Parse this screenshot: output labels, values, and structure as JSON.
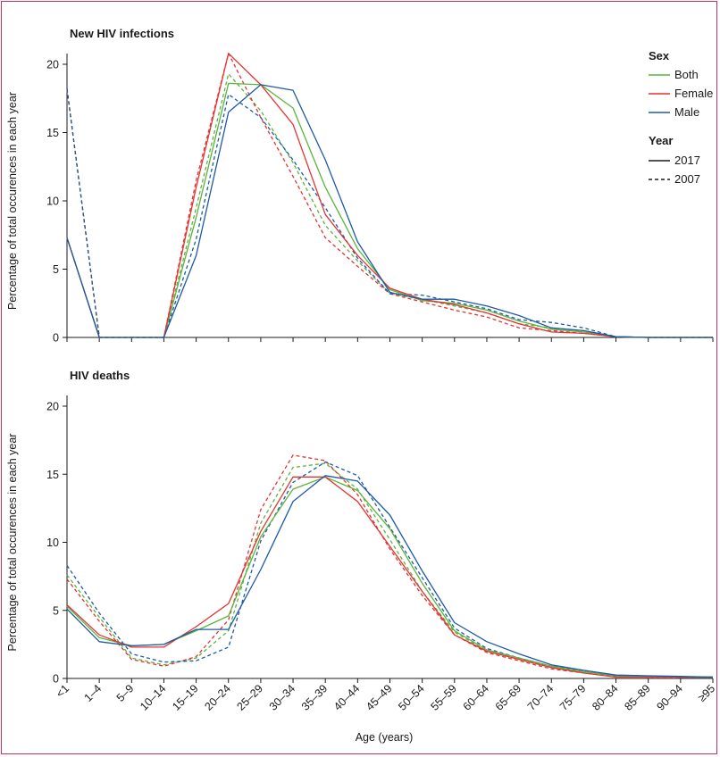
{
  "colors": {
    "both": "#5ab43c",
    "female": "#e53232",
    "male": "#1e5aa5",
    "frame": "#c8325a",
    "axis": "#1a1a1a"
  },
  "legend": {
    "sex_title": "Sex",
    "sex_items": [
      {
        "key": "both",
        "label": "Both"
      },
      {
        "key": "female",
        "label": "Female"
      },
      {
        "key": "male",
        "label": "Male"
      }
    ],
    "year_title": "Year",
    "year_items": [
      {
        "key": "2017",
        "label": "2017",
        "style": "solid"
      },
      {
        "key": "2007",
        "label": "2007",
        "style": "dashed"
      }
    ]
  },
  "x_axis": {
    "label": "Age (years)"
  },
  "chart_data": [
    {
      "type": "line",
      "title": "New HIV infections",
      "ylabel": "Percentage of total occurences in each year",
      "xlabel": "",
      "ylim": [
        0,
        20
      ],
      "yticks": [
        0,
        5,
        10,
        15,
        20
      ],
      "categories": [
        "<1",
        "1–4",
        "5–9",
        "10–14",
        "15–19",
        "20–24",
        "25–29",
        "30–34",
        "35–39",
        "40–44",
        "45–49",
        "50–54",
        "55–59",
        "60–64",
        "65–69",
        "70–74",
        "75–79",
        "80–84",
        "85–89",
        "90–94",
        "≥95"
      ],
      "series": [
        {
          "name": "Both 2017",
          "sex": "both",
          "year": "2017",
          "values": [
            7.3,
            0,
            0,
            0,
            8.8,
            18.6,
            18.5,
            16.8,
            11.0,
            6.5,
            3.5,
            2.7,
            2.5,
            2.0,
            1.2,
            0.6,
            0.4,
            0.05,
            0,
            0,
            0
          ]
        },
        {
          "name": "Female 2017",
          "sex": "female",
          "year": "2017",
          "values": [
            7.3,
            0,
            0,
            0,
            11.0,
            20.8,
            18.5,
            15.6,
            9.0,
            6.0,
            3.6,
            2.8,
            2.4,
            1.8,
            1.0,
            0.4,
            0.3,
            0.05,
            0,
            0,
            0
          ]
        },
        {
          "name": "Male 2017",
          "sex": "male",
          "year": "2017",
          "values": [
            7.3,
            0,
            0,
            0,
            6.0,
            16.5,
            18.5,
            18.1,
            13.0,
            7.0,
            3.3,
            2.8,
            2.8,
            2.3,
            1.6,
            0.7,
            0.5,
            0.05,
            0,
            0,
            0
          ]
        },
        {
          "name": "Both 2007",
          "sex": "both",
          "year": "2007",
          "values": [
            18.2,
            0,
            0,
            0,
            9.5,
            19.3,
            16.6,
            12.8,
            8.2,
            5.6,
            3.2,
            2.8,
            2.3,
            1.8,
            1.0,
            0.7,
            0.5,
            0.05,
            0,
            0,
            0
          ]
        },
        {
          "name": "Female 2007",
          "sex": "female",
          "year": "2007",
          "values": [
            18.2,
            0,
            0,
            0,
            11.5,
            20.8,
            16.1,
            11.8,
            7.3,
            5.2,
            3.2,
            2.6,
            2.0,
            1.5,
            0.7,
            0.5,
            0.3,
            0.05,
            0,
            0,
            0
          ]
        },
        {
          "name": "Male 2007",
          "sex": "male",
          "year": "2007",
          "values": [
            18.2,
            0,
            0,
            0,
            7.2,
            17.8,
            16.1,
            13.0,
            9.5,
            5.8,
            3.2,
            3.1,
            2.6,
            2.1,
            1.3,
            1.1,
            0.7,
            0.05,
            0,
            0,
            0
          ]
        }
      ]
    },
    {
      "type": "line",
      "title": "HIV deaths",
      "ylabel": "Percentage of total occurences in each year",
      "xlabel": "Age (years)",
      "ylim": [
        0,
        20
      ],
      "yticks": [
        0,
        5,
        10,
        15,
        20
      ],
      "categories": [
        "<1",
        "1–4",
        "5–9",
        "10–14",
        "15–19",
        "20–24",
        "25–29",
        "30–34",
        "35–39",
        "40–44",
        "45–49",
        "50–54",
        "55–59",
        "60–64",
        "65–69",
        "70–74",
        "75–79",
        "80–84",
        "85–89",
        "90–94",
        "≥95"
      ],
      "series": [
        {
          "name": "Both 2017",
          "sex": "both",
          "year": "2017",
          "values": [
            5.3,
            3.0,
            2.4,
            2.5,
            3.5,
            4.6,
            10.4,
            13.9,
            14.8,
            13.8,
            11.0,
            7.0,
            3.5,
            2.1,
            1.5,
            0.9,
            0.5,
            0.2,
            0.15,
            0.1,
            0.1
          ]
        },
        {
          "name": "Female 2017",
          "sex": "female",
          "year": "2017",
          "values": [
            5.4,
            3.2,
            2.3,
            2.3,
            3.8,
            5.5,
            10.8,
            14.8,
            14.8,
            13.0,
            9.7,
            6.4,
            3.2,
            2.0,
            1.4,
            0.8,
            0.4,
            0.1,
            0.1,
            0.1,
            0.1
          ]
        },
        {
          "name": "Male 2017",
          "sex": "male",
          "year": "2017",
          "values": [
            5.1,
            2.7,
            2.4,
            2.5,
            3.6,
            3.6,
            8.0,
            13.0,
            14.9,
            14.5,
            12.0,
            7.9,
            4.1,
            2.7,
            1.8,
            1.0,
            0.6,
            0.25,
            0.2,
            0.15,
            0.1
          ]
        },
        {
          "name": "Both 2007",
          "sex": "both",
          "year": "2007",
          "values": [
            7.6,
            4.5,
            1.5,
            1.0,
            1.5,
            3.5,
            11.4,
            15.5,
            15.8,
            13.9,
            10.2,
            6.4,
            3.4,
            2.0,
            1.4,
            0.8,
            0.5,
            0.2,
            0.15,
            0.1,
            0.1
          ]
        },
        {
          "name": "Female 2007",
          "sex": "female",
          "year": "2007",
          "values": [
            7.3,
            4.2,
            1.4,
            0.9,
            1.6,
            4.3,
            12.4,
            16.4,
            16.0,
            13.5,
            9.5,
            6.1,
            3.2,
            1.9,
            1.3,
            0.7,
            0.4,
            0.15,
            0.1,
            0.1,
            0.1
          ]
        },
        {
          "name": "Male 2007",
          "sex": "male",
          "year": "2007",
          "values": [
            8.3,
            4.8,
            1.8,
            1.2,
            1.3,
            2.3,
            10.1,
            14.4,
            15.9,
            14.9,
            11.1,
            7.4,
            3.7,
            2.2,
            1.5,
            0.9,
            0.6,
            0.2,
            0.15,
            0.1,
            0.1
          ]
        }
      ]
    }
  ]
}
